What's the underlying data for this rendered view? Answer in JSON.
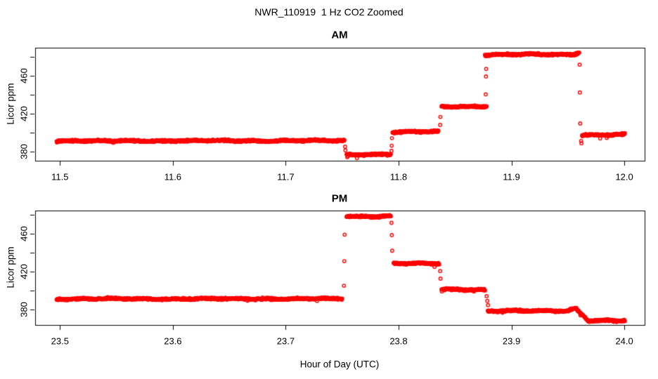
{
  "title": "NWR_110919  1 Hz CO2 Zoomed",
  "background_color": "#FFFFFF",
  "axis_color": "#000000",
  "chart_data": [
    {
      "type": "scatter",
      "title": "AM",
      "xlabel": "Hour of Day (UTC)",
      "ylabel": "Licor ppm",
      "marker": "open-circle",
      "color": "#FF0000",
      "sample_rate_hz": 1,
      "grid": false,
      "legend": false,
      "xlim": [
        11.478,
        12.018
      ],
      "ylim": [
        370,
        490
      ],
      "x_ticks": [
        {
          "v": 11.5,
          "t": "11.5"
        },
        {
          "v": 11.6,
          "t": "11.6"
        },
        {
          "v": 11.7,
          "t": "11.7"
        },
        {
          "v": 11.8,
          "t": "11.8"
        },
        {
          "v": 11.9,
          "t": "11.9"
        },
        {
          "v": 12.0,
          "t": "12.0"
        }
      ],
      "y_ticks_labeled": [
        {
          "v": 380,
          "t": "380"
        },
        {
          "v": 420,
          "t": "420"
        },
        {
          "v": 460,
          "t": "460"
        }
      ],
      "y_ticks_minor": [
        400,
        440,
        480
      ],
      "segments": [
        {
          "x0": 11.497,
          "x1": 11.752,
          "y0": 391.0,
          "y1": 391.3
        },
        {
          "x0": 11.7539,
          "x1": 11.7931,
          "y0": 376.6,
          "y1": 376.9
        },
        {
          "x0": 11.7946,
          "x1": 11.8353,
          "y0": 400.3,
          "y1": 400.9
        },
        {
          "x0": 11.838,
          "x1": 11.878,
          "y0": 427.3,
          "y1": 427.9
        },
        {
          "x0": 11.8765,
          "x1": 11.956,
          "y0": 482.6,
          "y1": 483.0
        },
        {
          "x0": 11.956,
          "x1": 11.96,
          "y0": 483.2,
          "y1": 485.8
        },
        {
          "x0": 11.9625,
          "x1": 12.0005,
          "y0": 397.3,
          "y1": 397.7
        }
      ],
      "transition_points": [
        {
          "x": 11.7526,
          "y": 385.0
        },
        {
          "x": 11.7529,
          "y": 381.0
        },
        {
          "x": 11.7545,
          "y": 373.8
        },
        {
          "x": 11.7552,
          "y": 374.8
        },
        {
          "x": 11.7937,
          "y": 380.5
        },
        {
          "x": 11.7939,
          "y": 386.0
        },
        {
          "x": 11.7941,
          "y": 394.0
        },
        {
          "x": 11.8368,
          "y": 408.0
        },
        {
          "x": 11.837,
          "y": 416.5
        },
        {
          "x": 11.8772,
          "y": 440.5
        },
        {
          "x": 11.8774,
          "y": 459.5
        },
        {
          "x": 11.8776,
          "y": 467.5
        },
        {
          "x": 11.9604,
          "y": 472.0
        },
        {
          "x": 11.9606,
          "y": 442.5
        },
        {
          "x": 11.9609,
          "y": 409.5
        },
        {
          "x": 11.9617,
          "y": 391.0
        },
        {
          "x": 11.962,
          "y": 388.5
        }
      ]
    },
    {
      "type": "scatter",
      "title": "PM",
      "xlabel": "Hour of Day (UTC)",
      "ylabel": "Licor ppm",
      "marker": "open-circle",
      "color": "#FF0000",
      "sample_rate_hz": 1,
      "grid": false,
      "legend": false,
      "xlim": [
        23.478,
        24.018
      ],
      "ylim": [
        363.5,
        484.5
      ],
      "x_ticks": [
        {
          "v": 23.5,
          "t": "23.5"
        },
        {
          "v": 23.6,
          "t": "23.6"
        },
        {
          "v": 23.7,
          "t": "23.7"
        },
        {
          "v": 23.8,
          "t": "23.8"
        },
        {
          "v": 23.9,
          "t": "23.9"
        },
        {
          "v": 24.0,
          "t": "24.0"
        }
      ],
      "y_ticks_labeled": [
        {
          "v": 380,
          "t": "380"
        },
        {
          "v": 420,
          "t": "420"
        },
        {
          "v": 460,
          "t": "460"
        }
      ],
      "y_ticks_minor": [
        400,
        440,
        480
      ],
      "segments": [
        {
          "x0": 23.497,
          "x1": 23.75,
          "y0": 391.0,
          "y1": 391.2
        },
        {
          "x0": 23.7539,
          "x1": 23.7931,
          "y0": 478.3,
          "y1": 478.7
        },
        {
          "x0": 23.7956,
          "x1": 23.836,
          "y0": 428.6,
          "y1": 428.3
        },
        {
          "x0": 23.838,
          "x1": 23.8766,
          "y0": 401.2,
          "y1": 400.8
        },
        {
          "x0": 23.879,
          "x1": 23.9505,
          "y0": 378.6,
          "y1": 378.2
        },
        {
          "x0": 23.9505,
          "x1": 23.9575,
          "y0": 378.8,
          "y1": 381.3
        },
        {
          "x0": 23.9575,
          "x1": 23.968,
          "y0": 380.5,
          "y1": 368.6
        },
        {
          "x0": 23.968,
          "x1": 24.0005,
          "y0": 368.3,
          "y1": 368.0
        }
      ],
      "transition_points": [
        {
          "x": 23.7516,
          "y": 405.0
        },
        {
          "x": 23.7519,
          "y": 431.0
        },
        {
          "x": 23.7522,
          "y": 459.0
        },
        {
          "x": 23.7937,
          "y": 471.5
        },
        {
          "x": 23.794,
          "y": 458.5
        },
        {
          "x": 23.7943,
          "y": 442.0
        },
        {
          "x": 23.8368,
          "y": 420.5
        },
        {
          "x": 23.8371,
          "y": 412.5
        },
        {
          "x": 23.878,
          "y": 394.0
        },
        {
          "x": 23.8786,
          "y": 389.0
        },
        {
          "x": 23.8792,
          "y": 384.5
        }
      ]
    }
  ]
}
